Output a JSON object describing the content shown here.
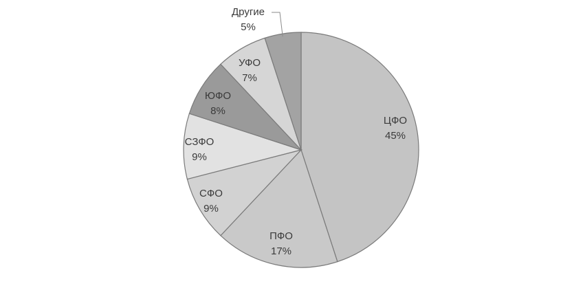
{
  "chart_data": {
    "type": "pie",
    "title": "",
    "slices": [
      {
        "label": "ЦФО",
        "value": 45,
        "value_label": "45%",
        "color": "#c4c4c4"
      },
      {
        "label": "ПФО",
        "value": 17,
        "value_label": "17%",
        "color": "#c9c9c9"
      },
      {
        "label": "СФО",
        "value": 9,
        "value_label": "9%",
        "color": "#d2d2d2"
      },
      {
        "label": "СЗФО",
        "value": 9,
        "value_label": "9%",
        "color": "#e2e2e2"
      },
      {
        "label": "ЮФО",
        "value": 8,
        "value_label": "8%",
        "color": "#9a9a9a"
      },
      {
        "label": "УФО",
        "value": 7,
        "value_label": "7%",
        "color": "#d6d6d6"
      },
      {
        "label": "Другие",
        "value": 5,
        "value_label": "5%",
        "color": "#a3a3a3"
      }
    ],
    "legend": "none",
    "start_angle": "12 o'clock",
    "direction": "clockwise",
    "slice_outline_color": "#7a7a7a"
  }
}
